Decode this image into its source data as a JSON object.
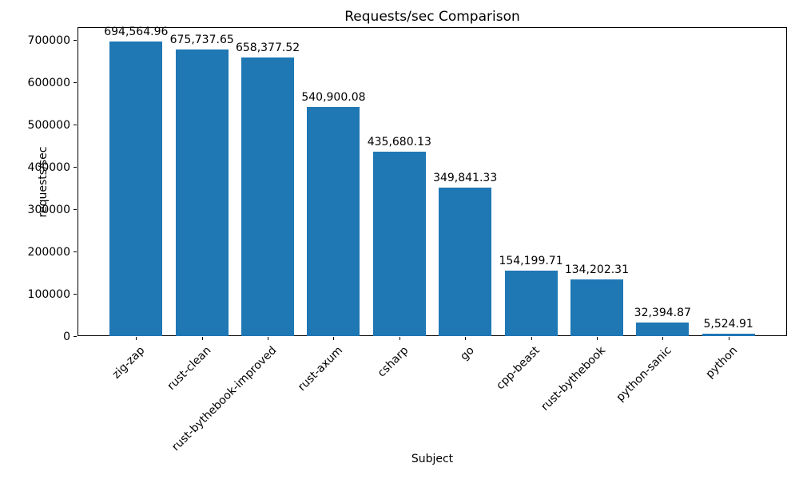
{
  "figure": {
    "background": "#ffffff"
  },
  "chart_data": {
    "type": "bar",
    "title": "Requests/sec Comparison",
    "xlabel": "Subject",
    "ylabel": "requests/sec",
    "categories": [
      "zig-zap",
      "rust-clean",
      "rust-bythebook-improved",
      "rust-axum",
      "csharp",
      "go",
      "cpp-beast",
      "rust-bythebook",
      "python-sanic",
      "python"
    ],
    "values": [
      694564.96,
      675737.65,
      658377.52,
      540900.08,
      435680.13,
      349841.33,
      154199.71,
      134202.31,
      32394.87,
      5524.91
    ],
    "value_labels": [
      "694,564.96",
      "675,737.65",
      "658,377.52",
      "540,900.08",
      "435,680.13",
      "349,841.33",
      "154,199.71",
      "134,202.31",
      "32,394.87",
      "5,524.91"
    ],
    "bar_color": "#1f77b4",
    "ylim": [
      0,
      729293
    ],
    "yticks": [
      0,
      100000,
      200000,
      300000,
      400000,
      500000,
      600000,
      700000
    ],
    "ytick_labels": [
      "0",
      "100000",
      "200000",
      "300000",
      "400000",
      "500000",
      "600000",
      "700000"
    ],
    "x_tick_rotation_deg": 45,
    "grid": false,
    "legend_position": "none"
  }
}
